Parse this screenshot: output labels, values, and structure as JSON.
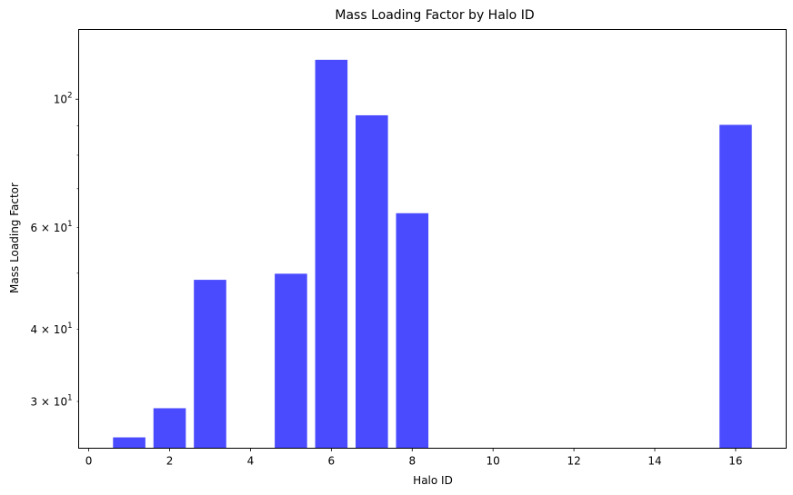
{
  "chart_data": {
    "type": "bar",
    "title": "Mass Loading Factor by Halo ID",
    "xlabel": "Halo ID",
    "ylabel": "Mass Loading Factor",
    "x": [
      1,
      2,
      3,
      5,
      6,
      7,
      8,
      16
    ],
    "values": [
      26.0,
      29.2,
      48.7,
      49.9,
      117.0,
      93.8,
      63.5,
      90.3
    ],
    "bar_width": 0.8,
    "bar_color": "#4a4aff",
    "xlim": [
      -0.25,
      17.25
    ],
    "ylim": [
      24.9,
      132
    ],
    "yscale": "log",
    "grid": false,
    "legend": "none",
    "x_ticks": [
      "0",
      "2",
      "4",
      "6",
      "8",
      "10",
      "12",
      "14",
      "16"
    ],
    "y_ticks_major": [
      {
        "value": 100,
        "base": "10",
        "exp": "2"
      }
    ],
    "y_ticks_labeled_minor": [
      {
        "value": 30,
        "coef": "3 × 10",
        "exp": "1"
      },
      {
        "value": 40,
        "coef": "4 × 10",
        "exp": "1"
      },
      {
        "value": 60,
        "coef": "6 × 10",
        "exp": "1"
      }
    ],
    "y_ticks_unlabeled_minor": [
      50,
      70,
      80,
      90
    ]
  }
}
